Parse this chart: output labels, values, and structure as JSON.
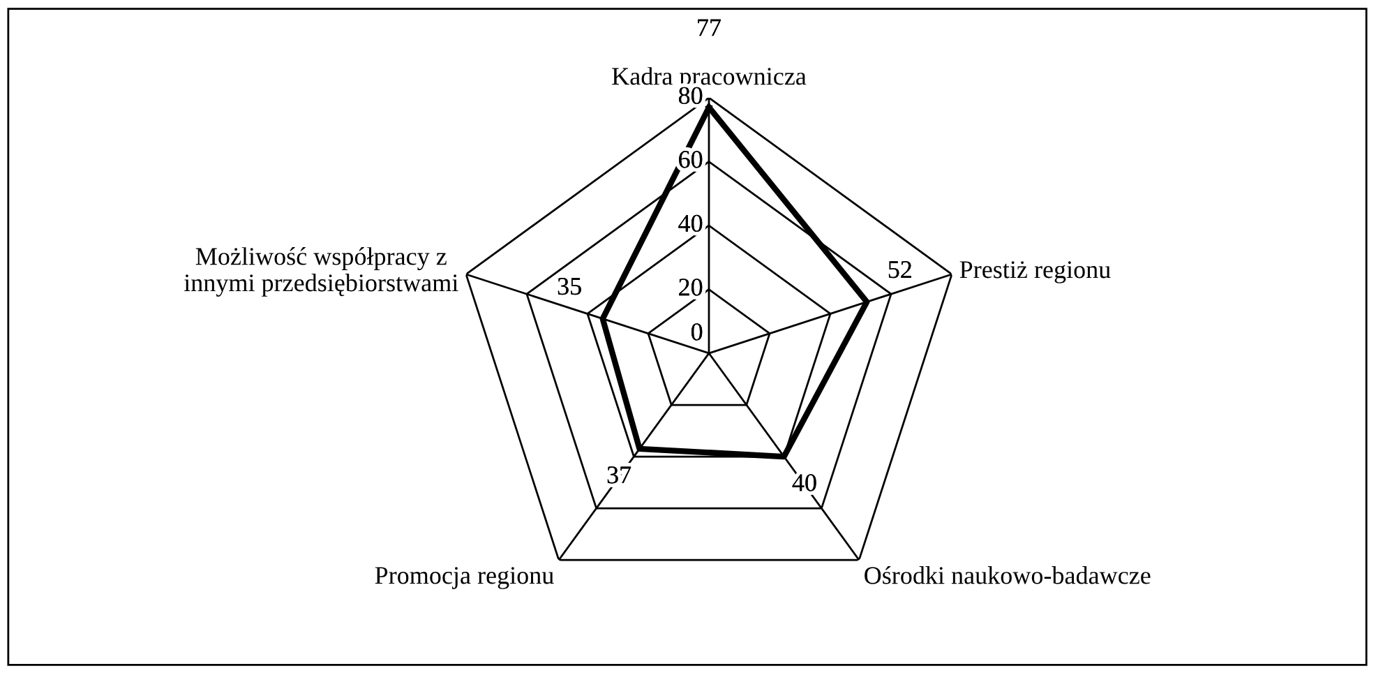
{
  "chart_data": {
    "type": "radar",
    "categories": [
      "Kadra pracownicza",
      "Prestiż regionu",
      "Ośrodki naukowo-badawcze",
      "Promocja regionu",
      "Możliwość współpracy z\ninnymi przedsiębiorstwami"
    ],
    "series": [
      {
        "color": "#000000",
        "values": [
          77,
          52,
          40,
          37,
          35
        ]
      }
    ],
    "ylim": [
      0,
      80
    ],
    "yticks": [
      0,
      20,
      40,
      60,
      80
    ],
    "data_labels": true,
    "marker": "none",
    "line_style": "solid",
    "legend": false,
    "grid": true
  }
}
